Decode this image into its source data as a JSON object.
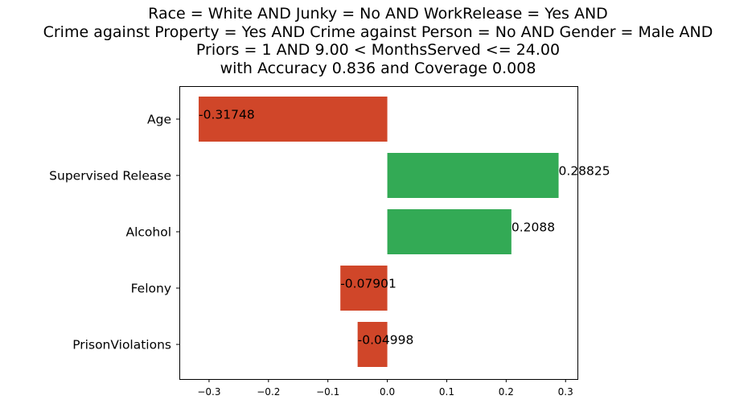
{
  "chart_data": {
    "type": "bar",
    "orientation": "horizontal",
    "title": [
      "Race = White AND Junky = No AND WorkRelease = Yes AND",
      "Crime against Property = Yes AND Crime against Person = No AND Gender = Male AND",
      "Priors = 1 AND 9.00 < MonthsServed <= 24.00",
      "with Accuracy 0.836 and Coverage 0.008"
    ],
    "categories": [
      "Age",
      "Supervised Release",
      "Alcohol",
      "Felony",
      "PrisonViolations"
    ],
    "values": [
      -0.31748,
      0.28825,
      0.2088,
      -0.07901,
      -0.04998
    ],
    "value_labels": [
      "-0.31748",
      "0.28825",
      "0.2088",
      "-0.07901",
      "-0.04998"
    ],
    "xlabel": "",
    "ylabel": "",
    "xlim": [
      -0.35,
      0.32
    ],
    "xticks": [
      -0.3,
      -0.2,
      -0.1,
      0.0,
      0.1,
      0.2,
      0.3
    ],
    "xtick_labels": [
      "−0.3",
      "−0.2",
      "−0.1",
      "0.0",
      "0.1",
      "0.2",
      "0.3"
    ],
    "grid": false,
    "legend": "none",
    "colors": {
      "negative": "#d04629",
      "positive": "#33aa55"
    }
  }
}
